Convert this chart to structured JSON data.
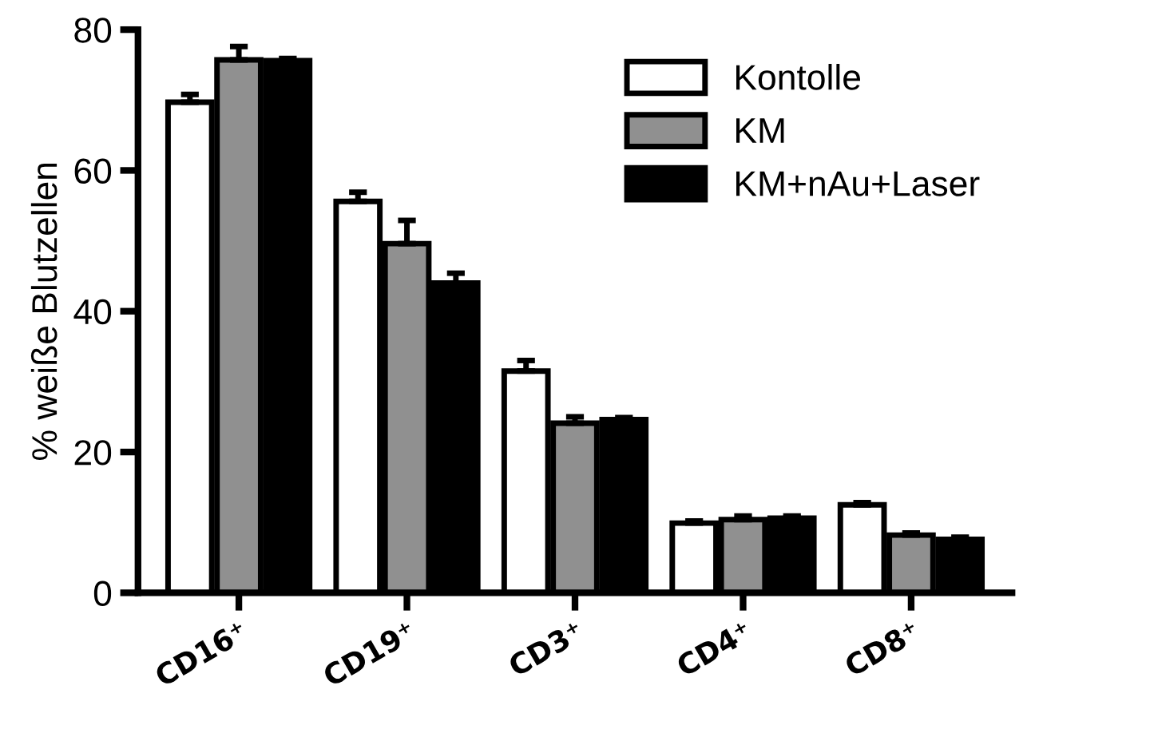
{
  "chart_data": {
    "type": "bar",
    "ylabel": "% weiße Blutzellen",
    "categories": [
      "CD16⁺",
      "CD19⁺",
      "CD3⁺",
      "CD4⁺",
      "CD8⁺"
    ],
    "series": [
      {
        "name": "Kontolle",
        "color": "#ffffff",
        "values": [
          69.7,
          55.6,
          31.5,
          9.9,
          12.5
        ],
        "errors": [
          1.1,
          1.3,
          1.5,
          0.3,
          0.3
        ]
      },
      {
        "name": "KM",
        "color": "#909090",
        "values": [
          75.7,
          49.6,
          24.1,
          10.4,
          8.2
        ],
        "errors": [
          1.9,
          3.3,
          0.9,
          0.5,
          0.3
        ]
      },
      {
        "name": "KM+nAu+Laser",
        "color": "#000000",
        "values": [
          75.6,
          44.0,
          24.6,
          10.6,
          7.6
        ],
        "errors": [
          0.3,
          1.4,
          0.3,
          0.3,
          0.3
        ]
      }
    ],
    "ylim": [
      0,
      80
    ],
    "yticks": [
      0,
      20,
      40,
      60,
      80
    ],
    "grid": false,
    "legend": "top right"
  }
}
